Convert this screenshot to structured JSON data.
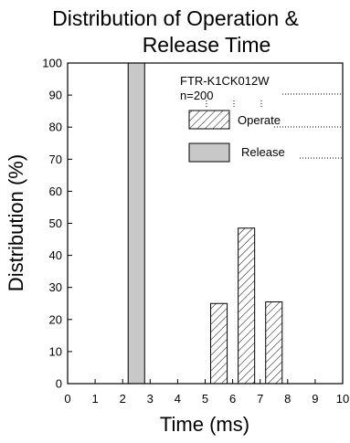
{
  "chart_data": {
    "type": "bar",
    "title_lines": [
      "Distribution of Operation &",
      "Release Time"
    ],
    "xlabel": "Time (ms)",
    "ylabel": "Distribution (%)",
    "xlim": [
      0,
      10
    ],
    "ylim": [
      0,
      100
    ],
    "xticks": [
      "0",
      "1",
      "2",
      "3",
      "4",
      "5",
      "6",
      "7",
      "8",
      "9",
      "10"
    ],
    "yticks": [
      "0",
      "10",
      "20",
      "30",
      "40",
      "50",
      "60",
      "70",
      "80",
      "90",
      "100"
    ],
    "annotation_lines": [
      "FTR-K1CK012W",
      "n=200"
    ],
    "grid": false,
    "legend_position": "top-right",
    "series": [
      {
        "name": "Operate",
        "pattern": "hatched",
        "color": "#000000",
        "bars": [
          {
            "x_start": 5.2,
            "x_end": 5.8,
            "value": 25
          },
          {
            "x_start": 6.2,
            "x_end": 6.8,
            "value": 48.5
          },
          {
            "x_start": 7.2,
            "x_end": 7.8,
            "value": 25.5
          }
        ]
      },
      {
        "name": "Release",
        "pattern": "solid",
        "color": "#c8c8c8",
        "bars": [
          {
            "x_start": 2.2,
            "x_end": 2.8,
            "value": 100
          }
        ]
      }
    ]
  }
}
